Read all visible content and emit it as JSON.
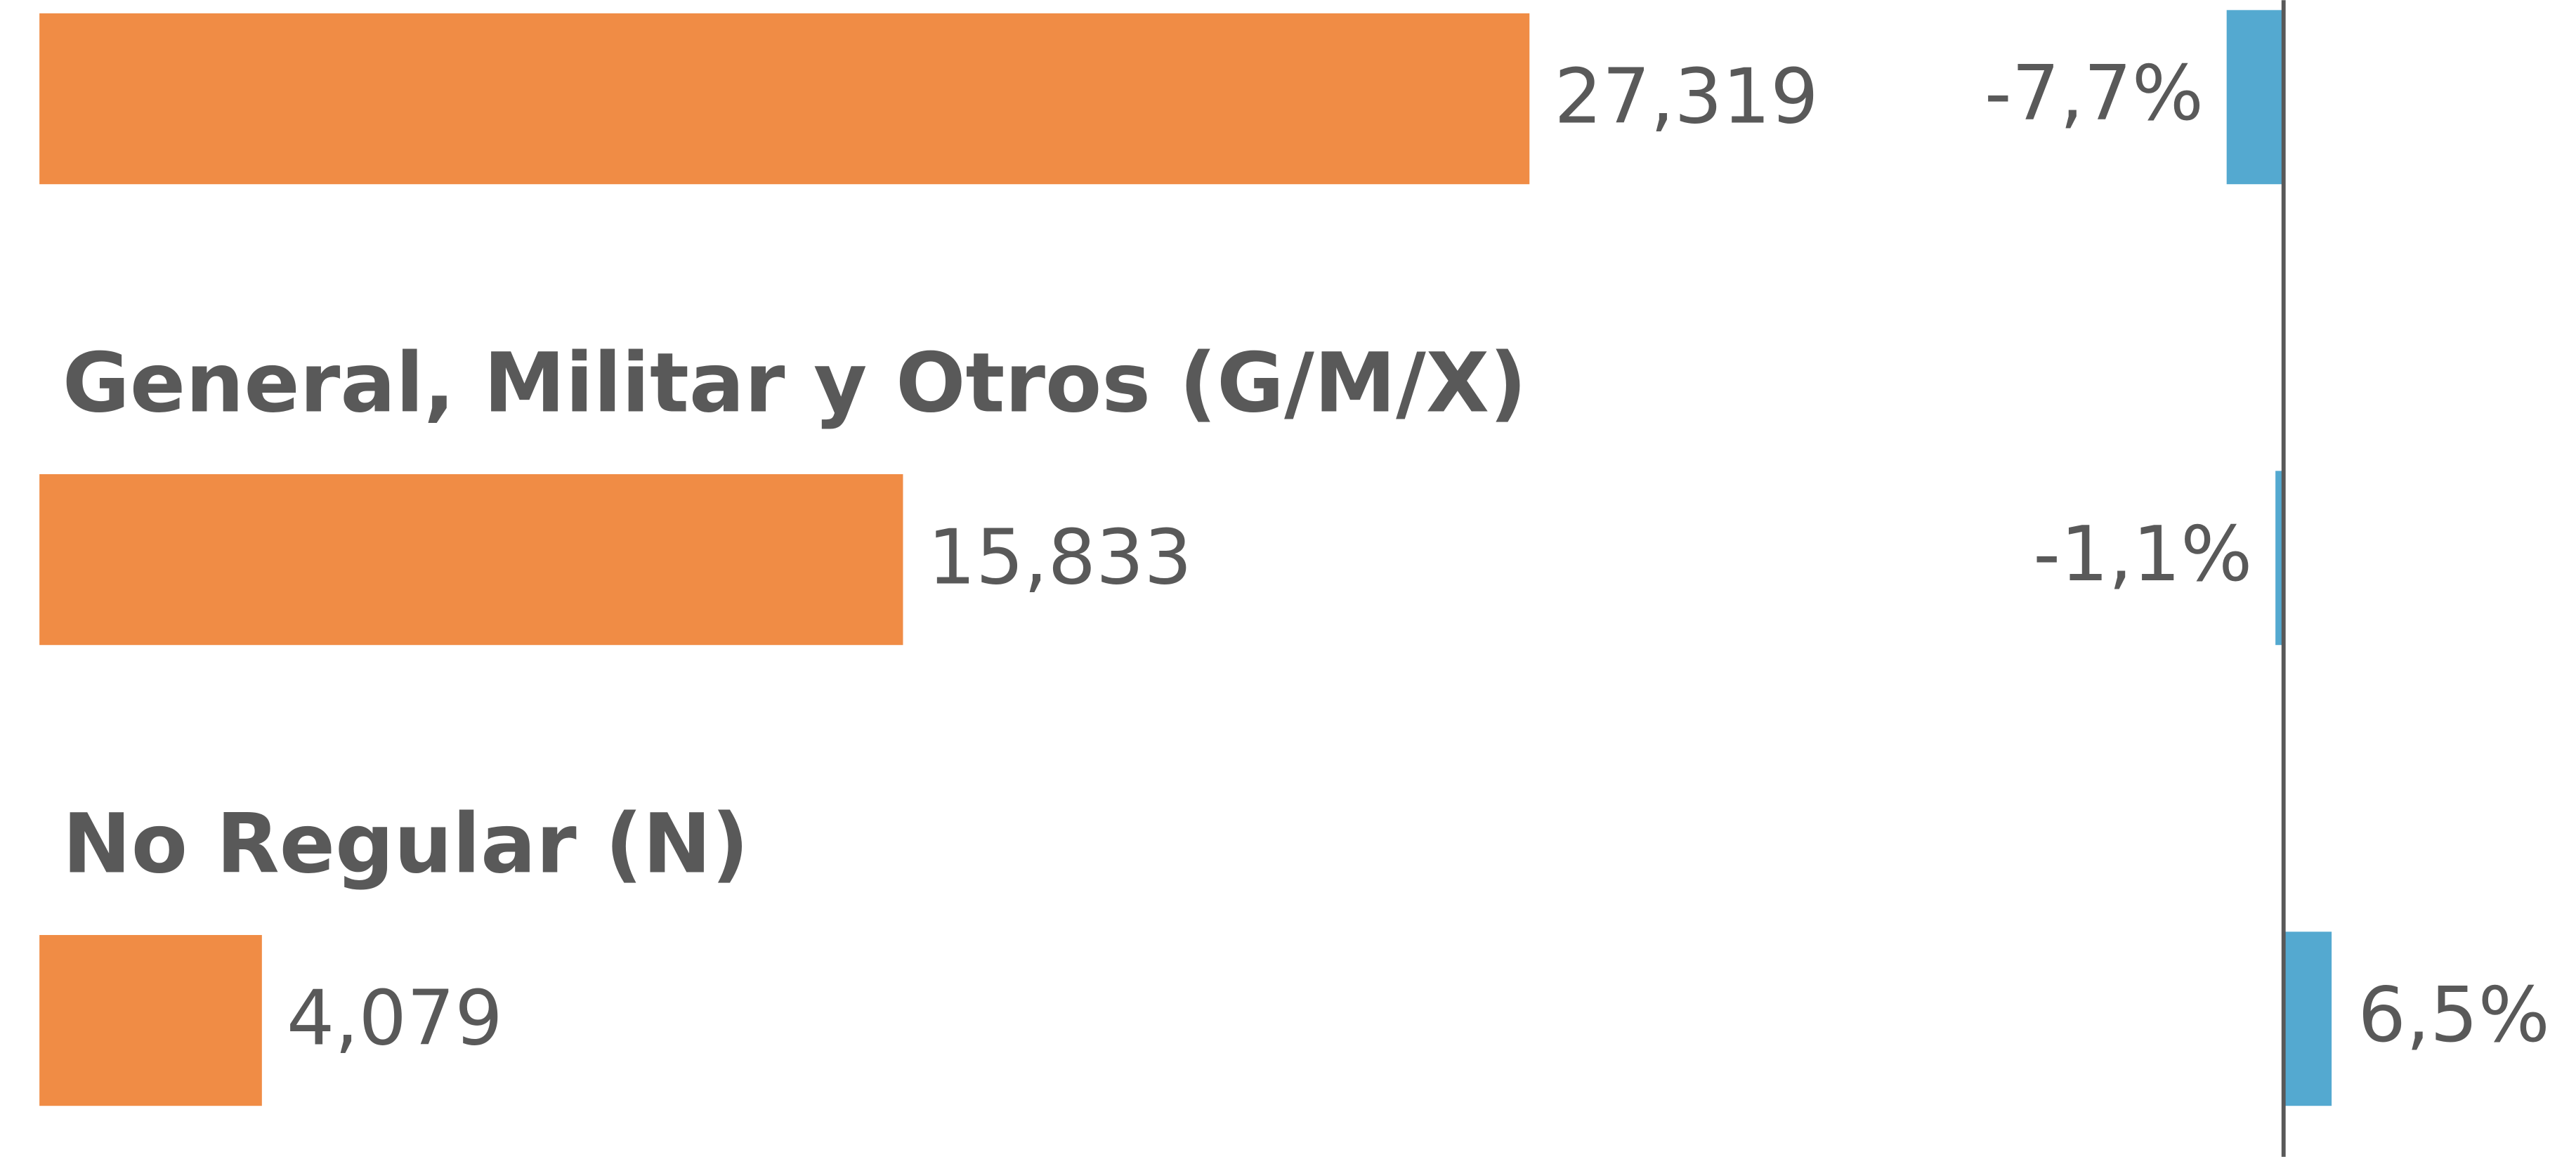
{
  "chart_data": {
    "type": "bar",
    "categories": [
      null,
      "General, Militar y Otros (G/M/X)",
      "No Regular (N)"
    ],
    "series": [
      {
        "color": "#f08c45",
        "values": [
          27319,
          15833,
          4079
        ],
        "value_labels": [
          "27,319",
          "15,833",
          "4,079"
        ]
      },
      {
        "color": "#54a9d0",
        "values": [
          -7.7,
          -1.1,
          6.5
        ],
        "value_labels": [
          "-7,7%",
          "-1,1%",
          "6,5%"
        ]
      }
    ]
  }
}
